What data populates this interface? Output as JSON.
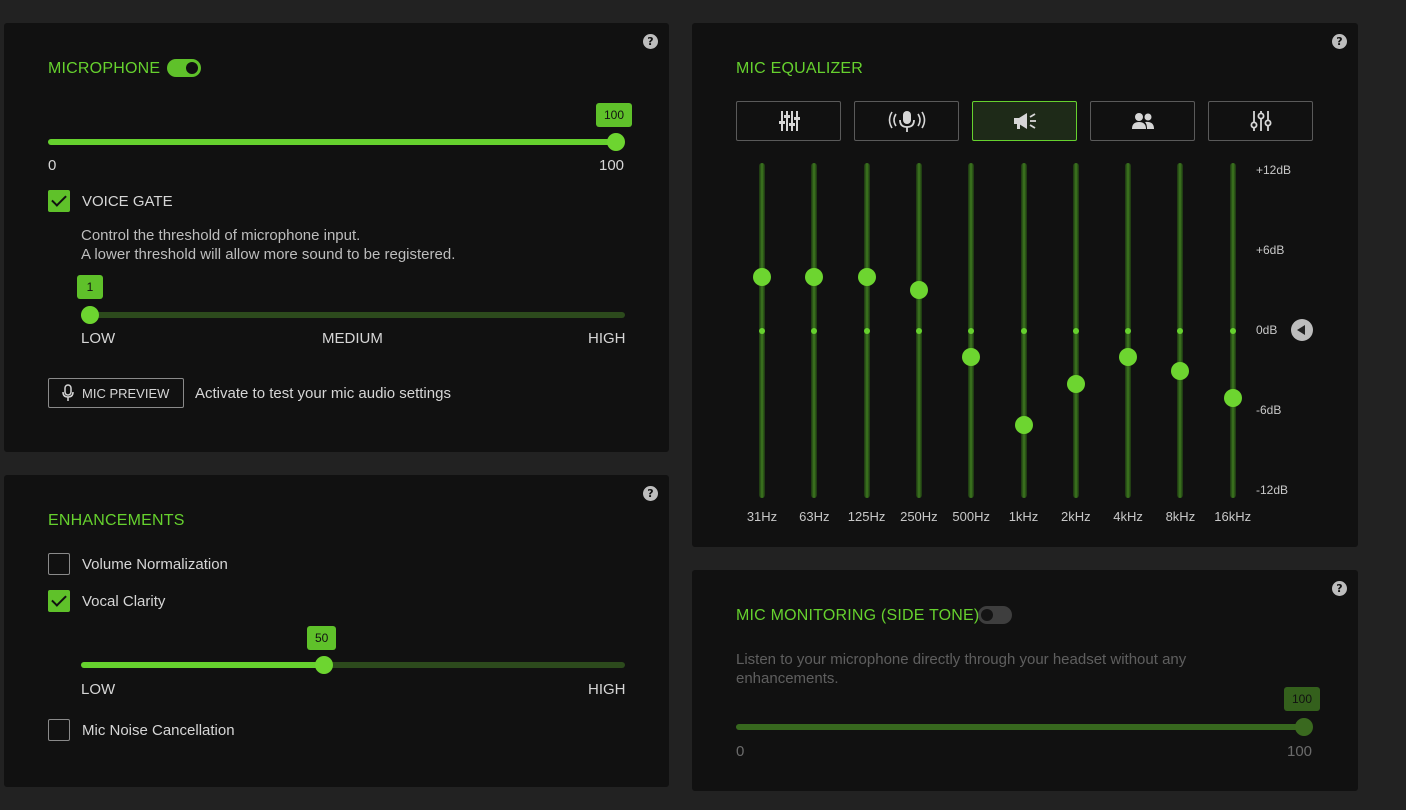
{
  "help_glyph": "?",
  "microphone": {
    "title": "MICROPHONE",
    "enabled": true,
    "volume": 100,
    "volume_bubble": "100",
    "min_label": "0",
    "max_label": "100",
    "voice_gate": {
      "label": "VOICE GATE",
      "checked": true,
      "description_line1": "Control the threshold of microphone input.",
      "description_line2": "A lower threshold will allow more sound to be registered.",
      "value": 1,
      "value_bubble": "1",
      "low_label": "LOW",
      "medium_label": "MEDIUM",
      "high_label": "HIGH"
    },
    "preview_button": "MIC PREVIEW",
    "preview_text": "Activate to test your mic audio settings"
  },
  "enhancements": {
    "title": "ENHANCEMENTS",
    "volume_normalization": {
      "label": "Volume Normalization",
      "checked": false
    },
    "vocal_clarity": {
      "label": "Vocal Clarity",
      "checked": true,
      "value": 50,
      "value_bubble": "50",
      "low_label": "LOW",
      "high_label": "HIGH"
    },
    "noise_cancellation": {
      "label": "Mic Noise Cancellation",
      "checked": false
    }
  },
  "equalizer": {
    "title": "MIC EQUALIZER",
    "presets": [
      {
        "icon": "sliders-icon",
        "active": false
      },
      {
        "icon": "microphone-broadcast-icon",
        "active": false
      },
      {
        "icon": "megaphone-icon",
        "active": true
      },
      {
        "icon": "group-icon",
        "active": false
      },
      {
        "icon": "custom-sliders-icon",
        "active": false
      }
    ],
    "db_labels": [
      "+12dB",
      "+6dB",
      "0dB",
      "-6dB",
      "-12dB"
    ],
    "bands": [
      {
        "label": "31Hz",
        "gain_db": 4
      },
      {
        "label": "63Hz",
        "gain_db": 4
      },
      {
        "label": "125Hz",
        "gain_db": 4
      },
      {
        "label": "250Hz",
        "gain_db": 3
      },
      {
        "label": "500Hz",
        "gain_db": -2
      },
      {
        "label": "1kHz",
        "gain_db": -7
      },
      {
        "label": "2kHz",
        "gain_db": -4
      },
      {
        "label": "4kHz",
        "gain_db": -2
      },
      {
        "label": "8kHz",
        "gain_db": -3
      },
      {
        "label": "16kHz",
        "gain_db": -5
      }
    ]
  },
  "monitoring": {
    "title": "MIC MONITORING (SIDE TONE)",
    "enabled": false,
    "description_line1": "Listen to your microphone directly through your headset without any",
    "description_line2": "enhancements.",
    "volume": 100,
    "volume_bubble": "100",
    "min_label": "0",
    "max_label": "100"
  },
  "colors": {
    "accent": "#66d12e",
    "panel": "#111111",
    "background": "#222222"
  }
}
